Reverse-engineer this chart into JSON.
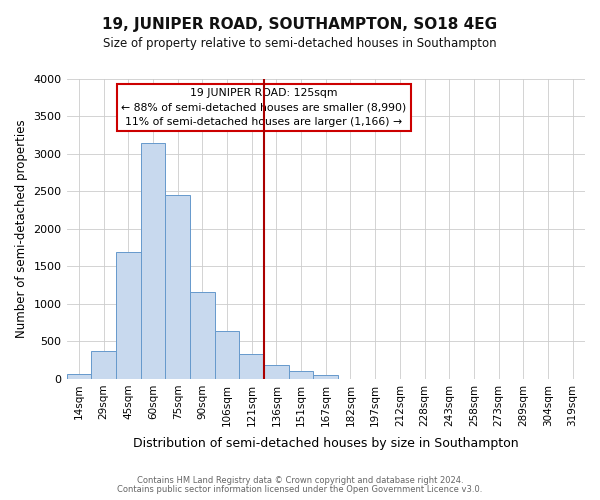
{
  "title": "19, JUNIPER ROAD, SOUTHAMPTON, SO18 4EG",
  "subtitle": "Size of property relative to semi-detached houses in Southampton",
  "xlabel": "Distribution of semi-detached houses by size in Southampton",
  "ylabel": "Number of semi-detached properties",
  "bar_color": "#c8d9ee",
  "bar_edge_color": "#6699cc",
  "vline_color": "#aa0000",
  "categories": [
    "14sqm",
    "29sqm",
    "45sqm",
    "60sqm",
    "75sqm",
    "90sqm",
    "106sqm",
    "121sqm",
    "136sqm",
    "151sqm",
    "167sqm",
    "182sqm",
    "197sqm",
    "212sqm",
    "228sqm",
    "243sqm",
    "258sqm",
    "273sqm",
    "289sqm",
    "304sqm",
    "319sqm"
  ],
  "bar_values": [
    65,
    370,
    1690,
    3140,
    2450,
    1160,
    635,
    330,
    185,
    105,
    50,
    5,
    0,
    0,
    0,
    0,
    0,
    0,
    0,
    0,
    0
  ],
  "ylim": [
    0,
    4000
  ],
  "yticks": [
    0,
    500,
    1000,
    1500,
    2000,
    2500,
    3000,
    3500,
    4000
  ],
  "annotation_title": "19 JUNIPER ROAD: 125sqm",
  "annotation_line1": "← 88% of semi-detached houses are smaller (8,990)",
  "annotation_line2": "11% of semi-detached houses are larger (1,166) →",
  "vline_index": 7.5,
  "footer1": "Contains HM Land Registry data © Crown copyright and database right 2024.",
  "footer2": "Contains public sector information licensed under the Open Government Licence v3.0.",
  "bg_color": "#ffffff",
  "grid_color": "#cccccc",
  "box_edge_color": "#cc0000",
  "box_bg_color": "#ffffff"
}
